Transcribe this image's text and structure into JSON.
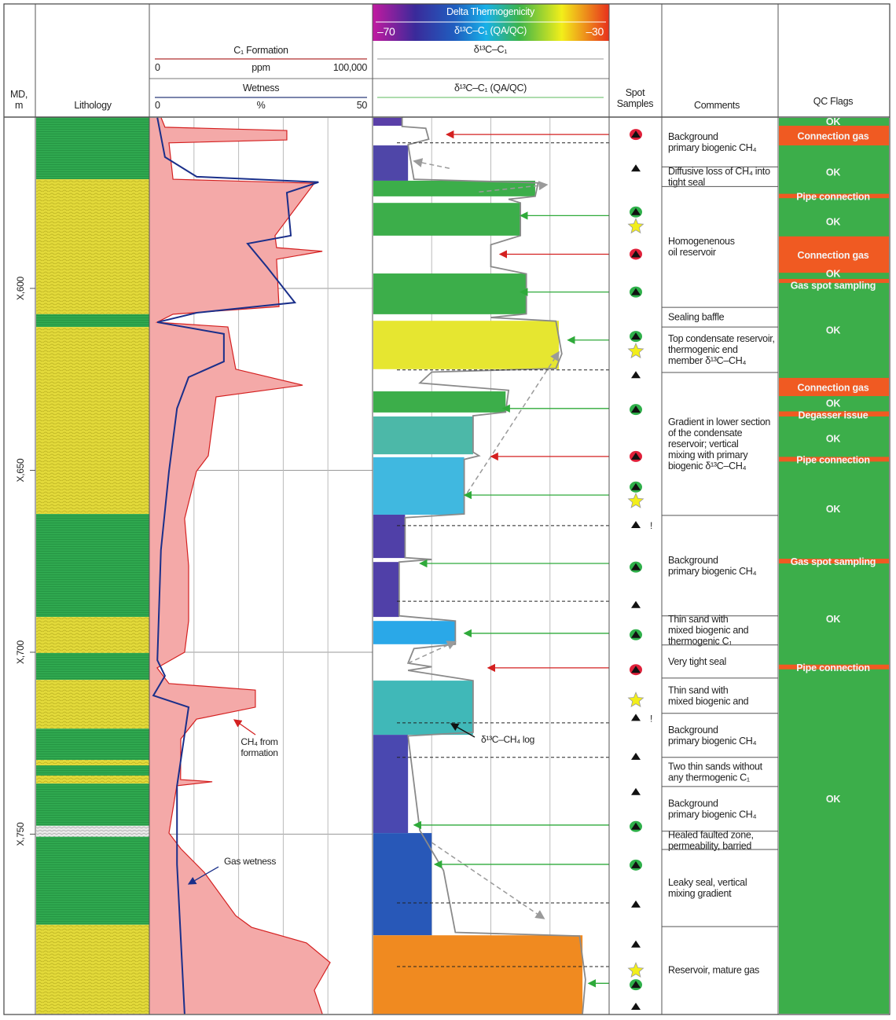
{
  "header": {
    "md_label_1": "MD,",
    "md_label_2": "m",
    "lithology": "Lithology",
    "c1_title": "C₁ Formation",
    "c1_min": "0",
    "c1_unit": "ppm",
    "c1_max": "100,000",
    "wet_title": "Wetness",
    "wet_min": "0",
    "wet_unit": "%",
    "wet_max": "50",
    "delta_title": "Delta Thermogenicity",
    "delta_min": "–70",
    "delta_mid": "δ¹³C–C₁ (QA/QC)",
    "delta_max": "–30",
    "iso_title": "δ¹³C–C₁",
    "iso_qc_title": "δ¹³C–C₁ (QA/QC)",
    "spot_1": "Spot",
    "spot_2": "Samples",
    "comments": "Comments",
    "qc_flags": "QC Flags"
  },
  "colors": {
    "shale": "#2fa84f",
    "sand": "#e2d93a",
    "c1_fill": "#f4a9a8",
    "c1_line": "#d42020",
    "wetness": "#1a2f8a",
    "iso_line": "#8a8a8a",
    "qc_ok": "#3cae4a",
    "qc_issue": "#f05a22",
    "arrow_green": "#2faa3a",
    "arrow_red": "#d42020"
  },
  "depth_ticks": [
    {
      "depth": 600,
      "label": "X,600"
    },
    {
      "depth": 650,
      "label": "X,650"
    },
    {
      "depth": 700,
      "label": "X,700"
    },
    {
      "depth": 750,
      "label": "X,750"
    }
  ],
  "depth_range": [
    553,
    799.4
  ],
  "lithology": [
    [
      553,
      570,
      "shale"
    ],
    [
      570,
      607.1,
      "sand"
    ],
    [
      607.1,
      610.6,
      "shale"
    ],
    [
      610.6,
      662,
      "sand"
    ],
    [
      662,
      690.3,
      "shale"
    ],
    [
      690.3,
      700.2,
      "sand"
    ],
    [
      700.2,
      707.6,
      "shale"
    ],
    [
      707.6,
      721,
      "sand"
    ],
    [
      721,
      729.6,
      "shale"
    ],
    [
      729.6,
      731.1,
      "sand"
    ],
    [
      731.1,
      733.9,
      "shale"
    ],
    [
      733.9,
      736.1,
      "sand"
    ],
    [
      736.1,
      747.7,
      "shale"
    ],
    [
      747.7,
      750.7,
      "fault"
    ],
    [
      750.7,
      774.9,
      "shale"
    ],
    [
      774.9,
      799.4,
      "sand"
    ]
  ],
  "c1_curve": [
    [
      553.1,
      5300
    ],
    [
      555.7,
      7000
    ],
    [
      556.6,
      61600
    ],
    [
      559.2,
      61600
    ],
    [
      560,
      8800
    ],
    [
      570,
      10600
    ],
    [
      571.1,
      73900
    ],
    [
      585.5,
      56300
    ],
    [
      588.8,
      57000
    ],
    [
      589.8,
      77500
    ],
    [
      592,
      57000
    ],
    [
      605,
      58100
    ],
    [
      607.1,
      10600
    ],
    [
      609.3,
      3500
    ],
    [
      610.6,
      35200
    ],
    [
      622.2,
      38700
    ],
    [
      626.6,
      68700
    ],
    [
      629.8,
      29900
    ],
    [
      646,
      26400
    ],
    [
      650.3,
      21100
    ],
    [
      663.3,
      15800
    ],
    [
      676.2,
      17600
    ],
    [
      691.4,
      17600
    ],
    [
      700,
      15800
    ],
    [
      704.3,
      3500
    ],
    [
      708.6,
      8800
    ],
    [
      710.4,
      47500
    ],
    [
      715.1,
      47500
    ],
    [
      718.4,
      21100
    ],
    [
      723.8,
      14100
    ],
    [
      735,
      14000
    ],
    [
      735.6,
      28200
    ],
    [
      736.7,
      12300
    ],
    [
      749.7,
      8800
    ],
    [
      754,
      14100
    ],
    [
      760.5,
      24600
    ],
    [
      772.4,
      38700
    ],
    [
      775.6,
      45800
    ],
    [
      779.9,
      70400
    ],
    [
      785.3,
      81000
    ],
    [
      792.9,
      73900
    ],
    [
      799.4,
      77500
    ]
  ],
  "wetness_curve": [
    [
      553.1,
      1.8
    ],
    [
      563.9,
      3.5
    ],
    [
      569.3,
      10.6
    ],
    [
      570.8,
      37.9
    ],
    [
      573.7,
      30.8
    ],
    [
      585.5,
      31.7
    ],
    [
      587.7,
      22
    ],
    [
      594.2,
      26.4
    ],
    [
      603.9,
      32.6
    ],
    [
      606.7,
      10.6
    ],
    [
      609.3,
      1.8
    ],
    [
      612.5,
      16.7
    ],
    [
      620.1,
      16.7
    ],
    [
      624.4,
      8.8
    ],
    [
      633,
      6.2
    ],
    [
      650.3,
      4.4
    ],
    [
      671.9,
      2.6
    ],
    [
      702.2,
      1.8
    ],
    [
      706.5,
      3.5
    ],
    [
      711.9,
      0.9
    ],
    [
      715.1,
      8.8
    ],
    [
      736.7,
      6.2
    ],
    [
      758.3,
      6.2
    ],
    [
      799.4,
      7.9
    ]
  ],
  "isotope_fill": [
    [
      553.1,
      555.3,
      -65,
      "#5a3fa8"
    ],
    [
      560.7,
      570.4,
      -64,
      "#4f46a8"
    ],
    [
      570.4,
      574.7,
      -42.5,
      "#3cae4a"
    ],
    [
      576.5,
      585.5,
      -45,
      "#3cae4a"
    ],
    [
      595.9,
      607.1,
      -44,
      "#3cae4a"
    ],
    [
      608.9,
      622.2,
      -38.5,
      "#e6e630"
    ],
    [
      628.3,
      634.1,
      -47.5,
      "#3cae4a"
    ],
    [
      635.2,
      645.6,
      -53,
      "#4cb8a8"
    ],
    [
      646.4,
      662.2,
      -54.5,
      "#40b8e0"
    ],
    [
      662.2,
      674.1,
      -64.5,
      "#5040a8"
    ],
    [
      675.2,
      690.3,
      -65.5,
      "#5040a8"
    ],
    [
      691.4,
      697.8,
      -56,
      "#2aa8e8"
    ],
    [
      707.8,
      722.7,
      -53,
      "#40b8b8"
    ],
    [
      722.7,
      749.7,
      -64,
      "#4a48b0"
    ],
    [
      749.7,
      777.8,
      -60,
      "#2858b8"
    ],
    [
      777.8,
      799.4,
      -34.5,
      "#f08a20"
    ]
  ],
  "isotope_curve": [
    [
      553,
      -65
    ],
    [
      555.5,
      -65
    ],
    [
      556,
      -61
    ],
    [
      559,
      -60.5
    ],
    [
      560.5,
      -64
    ],
    [
      570,
      -63
    ],
    [
      571,
      -42
    ],
    [
      574.7,
      -42.5
    ],
    [
      575.5,
      -47
    ],
    [
      576.5,
      -45
    ],
    [
      585.5,
      -45
    ],
    [
      588,
      -50
    ],
    [
      594,
      -50
    ],
    [
      596,
      -44
    ],
    [
      607,
      -44
    ],
    [
      608,
      -50
    ],
    [
      609,
      -39
    ],
    [
      618,
      -38
    ],
    [
      622,
      -39
    ],
    [
      623,
      -60
    ],
    [
      626,
      -62
    ],
    [
      628,
      -47
    ],
    [
      634,
      -47.5
    ],
    [
      635,
      -53
    ],
    [
      645,
      -53
    ],
    [
      646,
      -52
    ],
    [
      647,
      -54.5
    ],
    [
      662,
      -54.5
    ],
    [
      663,
      -64.5
    ],
    [
      674,
      -64.5
    ],
    [
      674.5,
      -60
    ],
    [
      675.2,
      -65.5
    ],
    [
      690,
      -65.5
    ],
    [
      691.4,
      -56
    ],
    [
      697.8,
      -56
    ],
    [
      699,
      -63
    ],
    [
      703,
      -64
    ],
    [
      704,
      -60
    ],
    [
      705,
      -64
    ],
    [
      707.8,
      -53
    ],
    [
      722,
      -53
    ],
    [
      723,
      -64
    ],
    [
      749,
      -62
    ],
    [
      760,
      -58
    ],
    [
      777,
      -56
    ],
    [
      778,
      -35
    ],
    [
      790,
      -34
    ],
    [
      799.4,
      -34.5
    ]
  ],
  "dashed_levels": [
    560,
    622.4,
    665.2,
    686,
    719.4,
    728.9,
    768.9,
    786.4
  ],
  "spot_samples": [
    [
      557.7,
      "red"
    ],
    [
      567,
      "tri"
    ],
    [
      579,
      "green"
    ],
    [
      583,
      "star"
    ],
    [
      590.6,
      "red"
    ],
    [
      601,
      "green"
    ],
    [
      613.2,
      "green"
    ],
    [
      617.3,
      "star"
    ],
    [
      623.8,
      "tri"
    ],
    [
      633.3,
      "green"
    ],
    [
      646.2,
      "red"
    ],
    [
      654.6,
      "green"
    ],
    [
      658.5,
      "star"
    ],
    [
      665,
      "tri!"
    ],
    [
      676.6,
      "green"
    ],
    [
      687,
      "tri"
    ],
    [
      695.2,
      "green"
    ],
    [
      704.8,
      "red"
    ],
    [
      713.2,
      "star"
    ],
    [
      718,
      "tri!"
    ],
    [
      728.7,
      "tri"
    ],
    [
      738.4,
      "tri"
    ],
    [
      747.9,
      "green"
    ],
    [
      758.5,
      "green"
    ],
    [
      769.3,
      "tri"
    ],
    [
      780.3,
      "tri"
    ],
    [
      787.5,
      "star"
    ],
    [
      791.4,
      "green"
    ],
    [
      797.4,
      "tri"
    ]
  ],
  "sample_arrows": [
    [
      557.7,
      -58,
      "red"
    ],
    [
      580,
      -45.5,
      "green"
    ],
    [
      590.6,
      -49,
      "red"
    ],
    [
      601,
      -45.5,
      "green"
    ],
    [
      614.2,
      -37.5,
      "green"
    ],
    [
      633,
      -48.5,
      "green"
    ],
    [
      646.2,
      -50.5,
      "red"
    ],
    [
      656.8,
      -55,
      "green"
    ],
    [
      675.6,
      -62.5,
      "green"
    ],
    [
      694.8,
      -55,
      "green"
    ],
    [
      704.3,
      -51,
      "red"
    ],
    [
      747.5,
      -63.5,
      "green"
    ],
    [
      758.3,
      -60,
      "green"
    ],
    [
      791,
      -34,
      "green"
    ]
  ],
  "trend_arrows": [
    [
      567,
      -57,
      565,
      -63
    ],
    [
      573.5,
      -52,
      571.5,
      -40.5
    ],
    [
      656.2,
      -54,
      617.5,
      -38.5
    ],
    [
      703,
      -64,
      697.1,
      -56
    ],
    [
      752.3,
      -60,
      773.2,
      -41
    ]
  ],
  "annotations": [
    {
      "lines": [
        "CH₄ from",
        "formation"
      ],
      "depth": 717.5,
      "value_track": "c1"
    },
    {
      "lines": [
        "Gas wetness"
      ],
      "depth": 758.3,
      "value_track": "c1"
    },
    {
      "lines": [
        "δ¹³C–CH₄ log"
      ],
      "depth": 723.8,
      "value_track": "iso"
    }
  ],
  "comments": [
    {
      "top": 553,
      "bottom": 566.6,
      "lines": [
        "Background",
        "primary biogenic CH₄"
      ]
    },
    {
      "top": 566.6,
      "bottom": 572,
      "lines": [
        "Diffusive loss of CH₄ into",
        "tight seal"
      ]
    },
    {
      "top": 572,
      "bottom": 605.2,
      "lines": [
        "Homogenenous",
        "oil reservoir"
      ]
    },
    {
      "top": 605.2,
      "bottom": 610.6,
      "lines": [
        "Sealing baffle"
      ]
    },
    {
      "top": 610.6,
      "bottom": 623.1,
      "lines": [
        "Top condensate reservoir,",
        "thermogenic end",
        "member δ¹³C–CH₄"
      ]
    },
    {
      "top": 623.1,
      "bottom": 662.4,
      "lines": [
        "Gradient in lower section",
        "of the condensate",
        "reservoir; vertical",
        "mixing with primary",
        "biogenic δ¹³C–CH₄"
      ]
    },
    {
      "top": 662.4,
      "bottom": 690,
      "lines": [
        "Background",
        "primary biogenic CH₄"
      ]
    },
    {
      "top": 690,
      "bottom": 698,
      "lines": [
        "Thin sand with",
        "mixed biogenic and",
        "thermogenic C₁"
      ]
    },
    {
      "top": 698,
      "bottom": 707.1,
      "lines": [
        "Very tight seal"
      ]
    },
    {
      "top": 707.1,
      "bottom": 716.8,
      "lines": [
        "Thin sand with",
        "mixed biogenic and"
      ]
    },
    {
      "top": 716.8,
      "bottom": 728.9,
      "lines": [
        "Background",
        "primary biogenic CH₄"
      ]
    },
    {
      "top": 728.9,
      "bottom": 736.9,
      "lines": [
        "Two thin sands without",
        "any thermogenic C₁"
      ]
    },
    {
      "top": 736.9,
      "bottom": 749.2,
      "lines": [
        "Background",
        "primary biogenic CH₄"
      ]
    },
    {
      "top": 749.2,
      "bottom": 754.2,
      "lines": [
        "Healed faulted zone,",
        "permeability, barried"
      ]
    },
    {
      "top": 754.2,
      "bottom": 775.4,
      "lines": [
        "Leaky seal, vertical",
        "mixing gradient"
      ]
    },
    {
      "top": 775.4,
      "bottom": 799.4,
      "lines": [
        "Reservoir, mature gas"
      ]
    }
  ],
  "qc_issues": [
    {
      "top": 555.3,
      "bottom": 560.7,
      "label": "Connection gas"
    },
    {
      "top": 574,
      "bottom": 575.2,
      "label": "Pipe connection"
    },
    {
      "top": 585.7,
      "bottom": 595.7,
      "label": "Connection gas"
    },
    {
      "top": 597.4,
      "bottom": 598.5,
      "label": "Gas spot sampling"
    },
    {
      "top": 624.6,
      "bottom": 629.6,
      "label": "Connection gas"
    },
    {
      "top": 633.8,
      "bottom": 635.2,
      "label": "Degasser issue"
    },
    {
      "top": 646.3,
      "bottom": 647.6,
      "label": "Pipe connection"
    },
    {
      "top": 674.3,
      "bottom": 675.6,
      "label": "Gas spot sampling"
    },
    {
      "top": 703.4,
      "bottom": 704.7,
      "label": "Pipe connection"
    }
  ],
  "qc_ok": [
    {
      "depth": 554,
      "label": "OK"
    },
    {
      "depth": 567.9,
      "label": "OK"
    },
    {
      "depth": 581.5,
      "label": "OK"
    },
    {
      "depth": 596.8,
      "label": "OK"
    },
    {
      "depth": 611.3,
      "label": "OK"
    },
    {
      "depth": 631.6,
      "label": "OK"
    },
    {
      "depth": 641.1,
      "label": "OK"
    },
    {
      "depth": 660.5,
      "label": "OK"
    },
    {
      "depth": 690.7,
      "label": "OK"
    },
    {
      "depth": 740.2,
      "label": "OK"
    }
  ]
}
